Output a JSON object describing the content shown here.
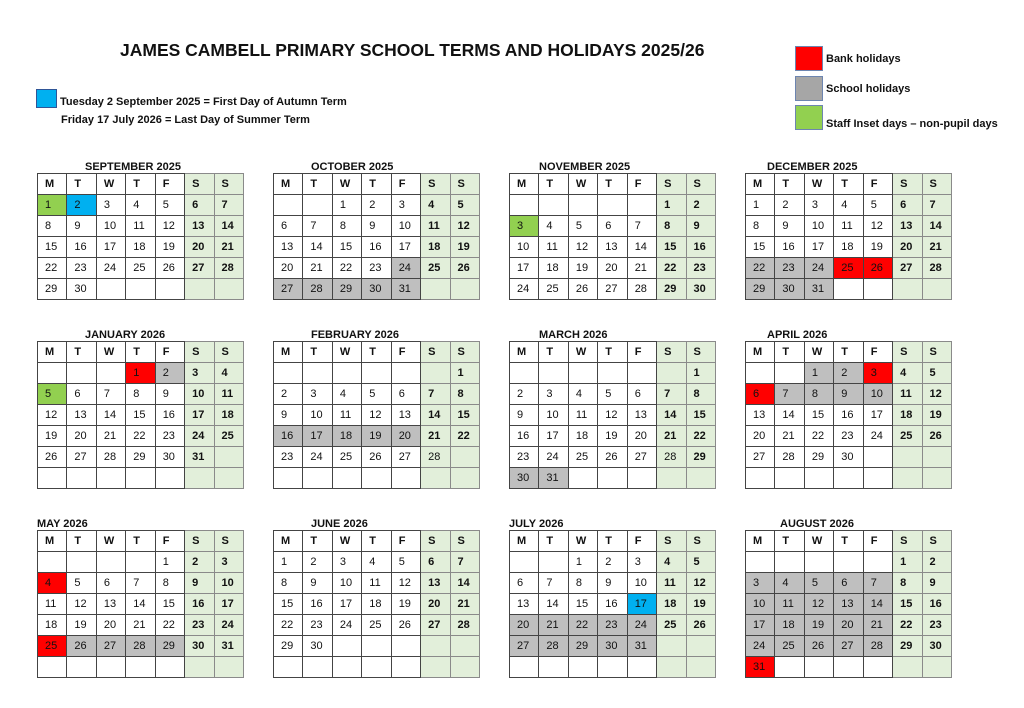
{
  "title": "JAMES CAMBELL PRIMARY SCHOOL TERMS AND HOLIDAYS 2025/26",
  "notes": {
    "first_day": "Tuesday 2 September 2025 = First Day of Autumn Term",
    "last_day": "Friday 17 July 2026 = Last Day of Summer Term",
    "marker_color": "#00b0f0"
  },
  "legend": [
    {
      "label": "Bank holidays",
      "color": "#ff0000",
      "type": "bank"
    },
    {
      "label": "School holidays",
      "color": "#bfbfbf",
      "type": "holiday"
    },
    {
      "label": "Staff Inset days – non-pupil days",
      "color": "#92d050",
      "type": "inset"
    }
  ],
  "weekday_headers": [
    "M",
    "T",
    "W",
    "T",
    "F",
    "S",
    "S"
  ],
  "weekend_color": "#e2efda",
  "months": [
    {
      "name": "SEPTEMBER 2025",
      "offset": 0,
      "days": 30,
      "rows": 5,
      "marks": {
        "1": "inset",
        "2": "term"
      },
      "not_bold": []
    },
    {
      "name": "OCTOBER 2025",
      "offset": 2,
      "days": 31,
      "rows": 5,
      "marks": {
        "24": "holiday",
        "27": "holiday",
        "28": "holiday",
        "29": "holiday",
        "30": "holiday",
        "31": "holiday"
      },
      "not_bold": []
    },
    {
      "name": "NOVEMBER 2025",
      "offset": 5,
      "days": 30,
      "rows": 5,
      "marks": {
        "3": "inset"
      },
      "not_bold": []
    },
    {
      "name": "DECEMBER 2025",
      "offset": 0,
      "days": 31,
      "rows": 5,
      "marks": {
        "22": "holiday",
        "23": "holiday",
        "24": "holiday",
        "25": "bank",
        "26": "bank",
        "29": "holiday",
        "30": "holiday",
        "31": "holiday"
      },
      "not_bold": []
    },
    {
      "name": "JANUARY 2026",
      "offset": 3,
      "days": 31,
      "rows": 6,
      "marks": {
        "1": "bank",
        "2": "holiday",
        "5": "inset"
      },
      "not_bold": []
    },
    {
      "name": "FEBRUARY 2026",
      "offset": 6,
      "days": 28,
      "rows": 6,
      "marks": {
        "16": "holiday",
        "17": "holiday",
        "18": "holiday",
        "19": "holiday",
        "20": "holiday"
      },
      "not_bold": [
        28
      ]
    },
    {
      "name": "MARCH 2026",
      "offset": 6,
      "days": 31,
      "rows": 6,
      "marks": {
        "30": "holiday",
        "31": "holiday"
      },
      "not_bold": [
        28
      ]
    },
    {
      "name": "APRIL 2026",
      "offset": 2,
      "days": 30,
      "rows": 6,
      "marks": {
        "1": "holiday",
        "2": "holiday",
        "3": "bank",
        "6": "bank",
        "7": "holiday",
        "8": "holiday",
        "9": "holiday",
        "10": "holiday"
      },
      "not_bold": []
    },
    {
      "name": "MAY 2026",
      "offset": 4,
      "days": 31,
      "rows": 6,
      "marks": {
        "4": "bank",
        "25": "bank",
        "26": "holiday",
        "27": "holiday",
        "28": "holiday",
        "29": "holiday"
      },
      "not_bold": []
    },
    {
      "name": "JUNE 2026",
      "offset": 0,
      "days": 30,
      "rows": 6,
      "marks": {},
      "not_bold": []
    },
    {
      "name": "JULY 2026",
      "offset": 2,
      "days": 31,
      "rows": 6,
      "marks": {
        "17": "term",
        "20": "holiday",
        "21": "holiday",
        "22": "holiday",
        "23": "holiday",
        "24": "holiday",
        "27": "holiday",
        "28": "holiday",
        "29": "holiday",
        "30": "holiday",
        "31": "holiday"
      },
      "not_bold": []
    },
    {
      "name": "AUGUST 2026",
      "offset": 5,
      "days": 31,
      "rows": 6,
      "marks": {
        "3": "holiday",
        "4": "holiday",
        "5": "holiday",
        "6": "holiday",
        "7": "holiday",
        "10": "holiday",
        "11": "holiday",
        "12": "holiday",
        "13": "holiday",
        "14": "holiday",
        "17": "holiday",
        "18": "holiday",
        "19": "holiday",
        "20": "holiday",
        "21": "holiday",
        "24": "holiday",
        "25": "holiday",
        "26": "holiday",
        "27": "holiday",
        "28": "holiday",
        "31": "bank"
      },
      "not_bold": []
    }
  ]
}
